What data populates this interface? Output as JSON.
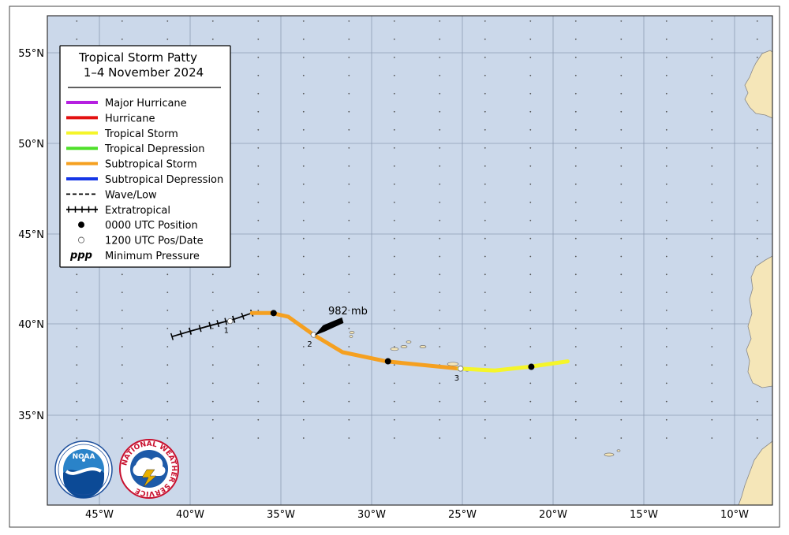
{
  "legend": {
    "title_line1": "Tropical Storm Patty",
    "title_line2": "1–4 November 2024",
    "items": [
      {
        "label": "Major Hurricane",
        "color": "#b51fe0",
        "style": "solid"
      },
      {
        "label": "Hurricane",
        "color": "#e31010",
        "style": "solid"
      },
      {
        "label": "Tropical Storm",
        "color": "#f5f52a",
        "style": "solid"
      },
      {
        "label": "Tropical Depression",
        "color": "#4fe02a",
        "style": "solid"
      },
      {
        "label": "Subtropical Storm",
        "color": "#f5a020",
        "style": "solid"
      },
      {
        "label": "Subtropical Depression",
        "color": "#1536e6",
        "style": "solid"
      },
      {
        "label": "Wave/Low",
        "color": "#000000",
        "style": "dashed"
      },
      {
        "label": "Extratropical",
        "color": "#000000",
        "style": "cross"
      },
      {
        "label": "0000 UTC Position",
        "color": "#000000",
        "style": "dot-filled"
      },
      {
        "label": "1200 UTC Pos/Date",
        "color": "#ffffff",
        "style": "dot-open"
      },
      {
        "label": "Minimum Pressure",
        "color": "#000000",
        "style": "ppp",
        "symbol": "ppp"
      }
    ]
  },
  "axes": {
    "lat_labels": [
      "55°N",
      "50°N",
      "45°N",
      "40°N",
      "35°N"
    ],
    "lon_labels": [
      "45°W",
      "40°W",
      "35°W",
      "30°W",
      "25°W",
      "20°W",
      "15°W",
      "10°W"
    ]
  },
  "track": {
    "extratropical": [
      [
        -41.0,
        39.3
      ],
      [
        -40.0,
        39.6
      ],
      [
        -38.9,
        39.9
      ],
      [
        -37.6,
        40.25
      ],
      [
        -36.6,
        40.6
      ]
    ],
    "subtropical_storm": [
      [
        -36.6,
        40.6
      ],
      [
        -35.5,
        40.6
      ],
      [
        -34.6,
        40.4
      ],
      [
        -33.2,
        39.4
      ],
      [
        -31.6,
        38.45
      ],
      [
        -29.2,
        37.95
      ],
      [
        -25.2,
        37.55
      ]
    ],
    "tropical_storm": [
      [
        -25.2,
        37.55
      ],
      [
        -23.2,
        37.45
      ],
      [
        -21.3,
        37.65
      ],
      [
        -19.2,
        37.95
      ]
    ],
    "positions_0000": [
      [
        -35.4,
        40.6
      ],
      [
        -29.1,
        37.95
      ],
      [
        -21.2,
        37.65
      ]
    ],
    "positions_1200": [
      {
        "lon": -37.8,
        "lat": 40.15,
        "date": "1"
      },
      {
        "lon": -33.2,
        "lat": 39.4,
        "date": "2"
      },
      {
        "lon": -25.1,
        "lat": 37.55,
        "date": "3"
      }
    ]
  },
  "pressure": {
    "label": "982 mb",
    "lon": -33.2,
    "lat": 39.4
  },
  "colors": {
    "ocean": "#cbd8ea",
    "land": "#f5e6b8",
    "grid": "#8c9cb4"
  },
  "logos": {
    "noaa": "NOAA",
    "noaa_ring": "NATIONAL OCEANIC AND ATMOSPHERIC ADMINISTRATION · U.S. DEPARTMENT OF COMMERCE",
    "nws": "NATIONAL WEATHER SERVICE"
  }
}
